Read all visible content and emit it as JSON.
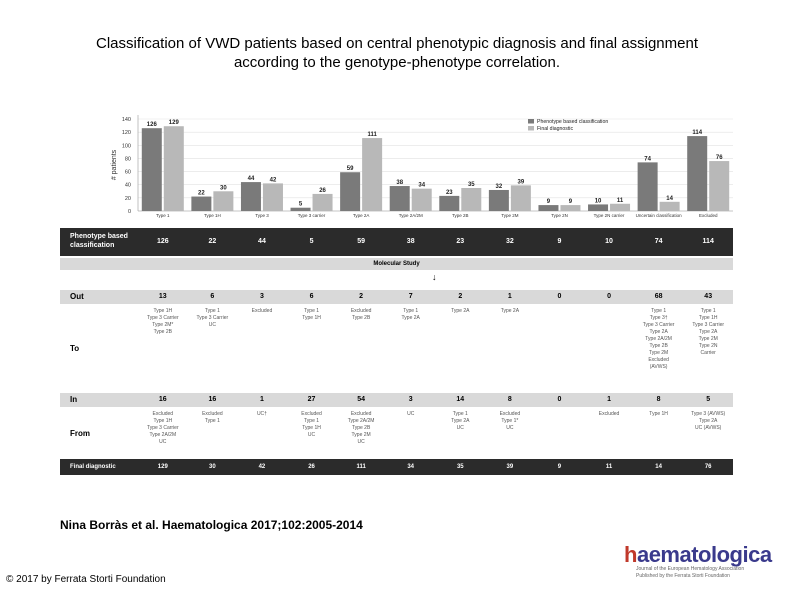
{
  "title_line1": "Classification of VWD patients based on central phenotypic diagnosis and final assignment",
  "title_line2": "according to the genotype-phenotype correlation.",
  "citation": "Nina Borràs et al. Haematologica 2017;102:2005-2014",
  "copyright": "© 2017 by Ferrata Storti Foundation",
  "logo": {
    "word_prefix": "h",
    "word_rest": "aematologica",
    "sub_line1": "Journal of the European Hematology Association",
    "sub_line2": "Published by the Ferrata Storti Foundation"
  },
  "colors": {
    "phenotype": "#7a7a7a",
    "final": "#b8b8b8",
    "dark_row": "#2b2b2b",
    "grey_row": "#d9d9d9"
  },
  "chart_data": {
    "type": "bar",
    "ylabel": "# patients",
    "ylim": [
      0,
      140
    ],
    "yticks": [
      0,
      20,
      40,
      60,
      80,
      100,
      120,
      140
    ],
    "categories": [
      "Type 1",
      "Type 1H",
      "Type 3",
      "Type 3 carrier",
      "Type 2A",
      "Type 2A/2M",
      "Type 2B",
      "Type 2M",
      "Type 2N",
      "Type 2N carrier",
      "Uncertain classification",
      "Excluded"
    ],
    "series": [
      {
        "name": "Phenotype based classification",
        "values": [
          126,
          22,
          44,
          5,
          59,
          38,
          23,
          32,
          9,
          10,
          74,
          114
        ]
      },
      {
        "name": "Final diagnostic",
        "values": [
          129,
          30,
          42,
          26,
          111,
          34,
          35,
          39,
          9,
          11,
          14,
          76
        ]
      }
    ],
    "legend": "top-right",
    "grid": true
  },
  "table": {
    "phenotype_label": "Phenotype based classification",
    "phenotype_values": [
      "126",
      "22",
      "44",
      "5",
      "59",
      "38",
      "23",
      "32",
      "9",
      "10",
      "74",
      "114"
    ],
    "molecular_study": "Molecular Study",
    "out_label": "Out",
    "out_values": [
      "13",
      "6",
      "3",
      "6",
      "2",
      "7",
      "2",
      "1",
      "0",
      "0",
      "68",
      "43"
    ],
    "to_label": "To",
    "to_details": [
      "Type 1H\nType 3 Carrier\nType 2M*\nType 2B",
      "Type 1\nType 3 Carrier\nUC",
      "Excluded",
      "Type 1\nType 1H",
      "Excluded\nType 2B",
      "Type 1\nType 2A",
      "Type 2A",
      "Type 2A",
      "",
      "",
      "Type 1\nType 3†\nType 3 Carrier\nType 2A\nType 2A/2M\nType 2B\nType 2M\nExcluded\n(AVWS)",
      "Type 1\nType 1H\nType 3 Carrier\nType 2A\nType 2M\nType 2N\nCarrier"
    ],
    "in_label": "In",
    "in_values": [
      "16",
      "16",
      "1",
      "27",
      "54",
      "3",
      "14",
      "8",
      "0",
      "1",
      "8",
      "5"
    ],
    "from_label": "From",
    "from_details": [
      "Excluded\nType 1H\nType 3 Carrier\nType 2A/2M\nUC",
      "Excluded\nType 1",
      "UC†",
      "Excluded\nType 1\nType 1H\nUC",
      "Excluded\nType 2A/2M\nType 2B\nType 2M\nUC",
      "UC",
      "Type 1\nType 2A\nUC",
      "Excluded\nType 1*\nUC",
      "",
      "Excluded",
      "Type 1H",
      "Type 3 (AVWS)\nType 2A\nUC (AVWS)"
    ],
    "final_label": "Final diagnostic",
    "final_values": [
      "129",
      "30",
      "42",
      "26",
      "111",
      "34",
      "35",
      "39",
      "9",
      "11",
      "14",
      "76"
    ]
  }
}
